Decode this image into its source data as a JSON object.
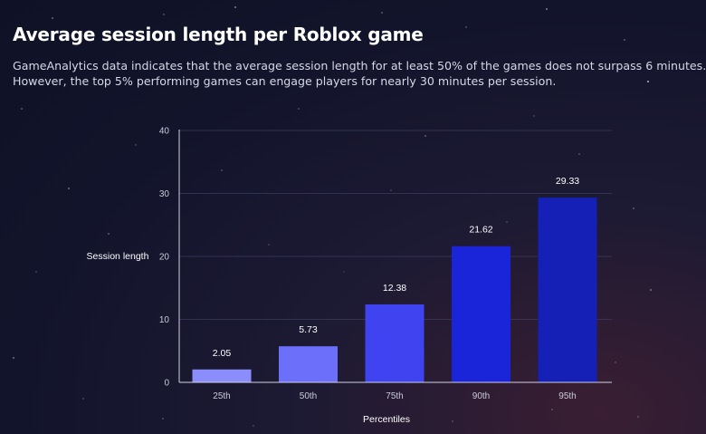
{
  "header": {
    "title": "Average session length per Roblox game",
    "subtitle_line1": "GameAnalytics data indicates that the average session length for at least 50% of the games does not surpass 6 minutes.",
    "subtitle_line2": "However, the top 5% performing games can engage players for nearly 30 minutes per session."
  },
  "chart_data": {
    "type": "bar",
    "categories": [
      "25th",
      "50th",
      "75th",
      "90th",
      "95th"
    ],
    "values": [
      2.05,
      5.73,
      12.38,
      21.62,
      29.33
    ],
    "data_labels": [
      "2.05",
      "5.73",
      "12.38",
      "21.62",
      "29.33"
    ],
    "bar_colors": [
      "#8a8dfb",
      "#6b6ffa",
      "#3f43f0",
      "#1a24d8",
      "#1420b6"
    ],
    "xlabel": "Percentiles",
    "ylabel": "Session length",
    "ylim": [
      0,
      40
    ],
    "yticks": [
      0,
      10,
      20,
      30,
      40
    ],
    "grid": true
  }
}
